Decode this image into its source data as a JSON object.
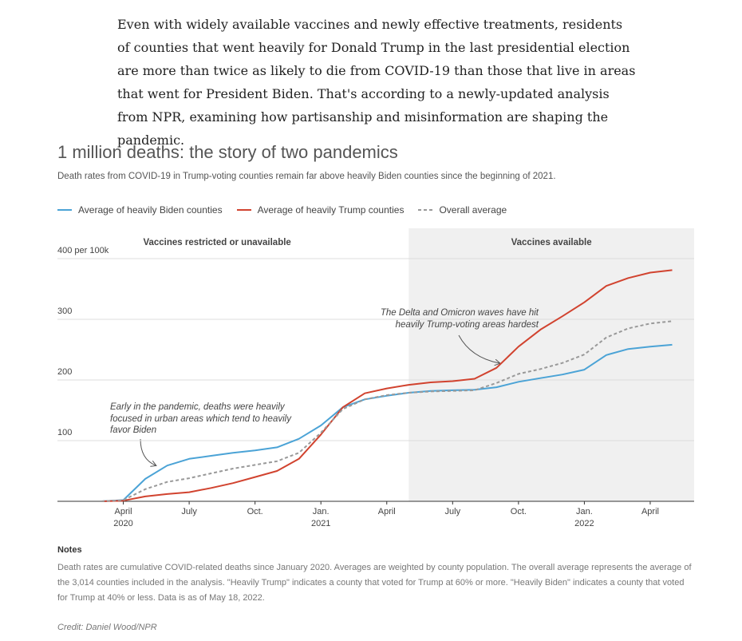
{
  "article": {
    "paragraph": "Even with widely available vaccines and newly effective treatments, residents of counties that went heavily for Donald Trump in the last presidential election are more than twice as likely to die from COVID-19 than those that live in areas that went for President Biden. That's according to a newly-updated analysis from NPR, examining how partisanship and misinformation are shaping the pandemic."
  },
  "chart_data": {
    "type": "line",
    "title": "1 million deaths: the story of two pandemics",
    "subtitle": "Death rates from COVID-19 in Trump-voting counties remain far above heavily Biden counties since the beginning of 2021.",
    "x": [
      "2020-03",
      "2020-04",
      "2020-05",
      "2020-06",
      "2020-07",
      "2020-08",
      "2020-09",
      "2020-10",
      "2020-11",
      "2020-12",
      "2021-01",
      "2021-02",
      "2021-03",
      "2021-04",
      "2021-05",
      "2021-06",
      "2021-07",
      "2021-08",
      "2021-09",
      "2021-10",
      "2021-11",
      "2021-12",
      "2022-01",
      "2022-02",
      "2022-03",
      "2022-04",
      "2022-05"
    ],
    "series": [
      {
        "name": "Average of heavily Biden counties",
        "color": "#4ba3d6",
        "dashed": false,
        "values": [
          0,
          2,
          37,
          59,
          70,
          75,
          80,
          84,
          89,
          103,
          125,
          155,
          168,
          174,
          179,
          182,
          183,
          184,
          188,
          197,
          203,
          209,
          217,
          241,
          251,
          255,
          258
        ]
      },
      {
        "name": "Average of heavily Trump counties",
        "color": "#d1432f",
        "dashed": false,
        "values": [
          0,
          1,
          8,
          12,
          15,
          22,
          30,
          40,
          50,
          70,
          110,
          155,
          178,
          186,
          192,
          196,
          198,
          202,
          220,
          255,
          283,
          305,
          328,
          355,
          368,
          377,
          381
        ]
      },
      {
        "name": "Overall average",
        "color": "#999999",
        "dashed": true,
        "values": [
          0,
          2,
          20,
          32,
          38,
          46,
          54,
          60,
          66,
          80,
          113,
          152,
          168,
          175,
          179,
          181,
          182,
          183,
          195,
          210,
          218,
          228,
          242,
          270,
          285,
          293,
          297
        ]
      }
    ],
    "xlim": [
      "2020-01",
      "2022-06"
    ],
    "xticks": [
      {
        "value": "2020-04",
        "label": "April",
        "year": "2020"
      },
      {
        "value": "2020-07",
        "label": "July"
      },
      {
        "value": "2020-10",
        "label": "Oct."
      },
      {
        "value": "2021-01",
        "label": "Jan.",
        "year": "2021"
      },
      {
        "value": "2021-04",
        "label": "April"
      },
      {
        "value": "2021-07",
        "label": "July"
      },
      {
        "value": "2021-10",
        "label": "Oct."
      },
      {
        "value": "2022-01",
        "label": "Jan.",
        "year": "2022"
      },
      {
        "value": "2022-04",
        "label": "April"
      }
    ],
    "ylim": [
      0,
      450
    ],
    "yticks": [
      100,
      200,
      300,
      {
        "value": 400,
        "label": "400 per 100k"
      }
    ],
    "grid": true,
    "regions": [
      {
        "label": "Vaccines restricted or unavailable",
        "start": "2020-01",
        "end": "2021-05",
        "shaded": false
      },
      {
        "label": "Vaccines available",
        "start": "2021-05",
        "end": "2022-06",
        "shaded": true
      }
    ],
    "annotations": [
      {
        "text": "Early in the pandemic, deaths were heavily focused in urban areas which tend to heavily favor Biden"
      },
      {
        "text": "The Delta and Omicron waves have hit heavily Trump-voting areas hardest"
      }
    ]
  },
  "notes": {
    "heading": "Notes",
    "text": "Death rates are cumulative COVID-related deaths since January 2020. Averages are weighted by county population. The overall average represents the average of the 3,014 counties included in the analysis. \"Heavily Trump\" indicates a county that voted for Trump at 60% or more. \"Heavily Biden\" indicates a county that voted for Trump at 40% or less. Data is as of May 18, 2022."
  },
  "credit": "Credit: Daniel Wood/NPR"
}
